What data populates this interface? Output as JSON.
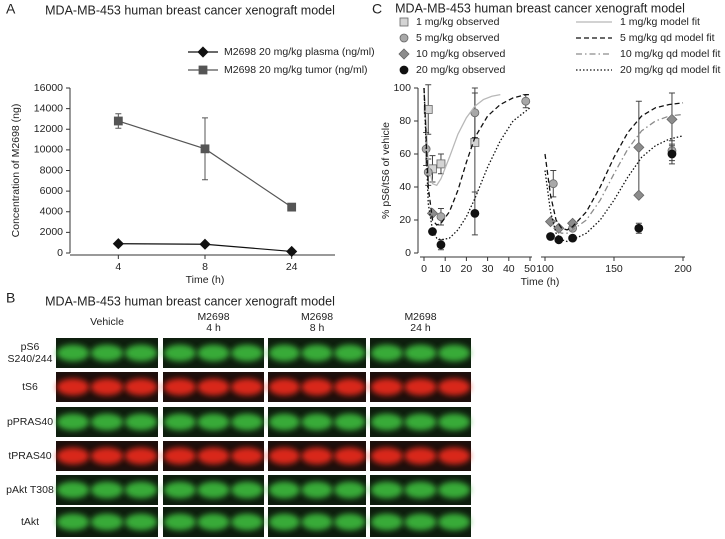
{
  "chart_data": [
    {
      "type": "line",
      "label": "A",
      "title": "MDA-MB-453 human breast cancer xenograft model",
      "xlabel": "Time (h)",
      "ylabel": "Concentration of M2698 (ng)",
      "categories": [
        "4",
        "8",
        "24"
      ],
      "ylim": [
        0,
        16000
      ],
      "yticks": [
        0,
        2000,
        4000,
        6000,
        8000,
        10000,
        12000,
        14000,
        16000
      ],
      "series": [
        {
          "name": "M2698 20 mg/kg plasma (ng/ml)",
          "color": "#111111",
          "marker": "diamond",
          "values": [
            900,
            850,
            150
          ],
          "errors": [
            60,
            60,
            40
          ]
        },
        {
          "name": "M2698 20 mg/kg tumor (ng/ml)",
          "color": "#555555",
          "marker": "square",
          "values": [
            12800,
            10100,
            4450
          ],
          "errors": [
            700,
            3000,
            120
          ]
        }
      ]
    },
    {
      "type": "scatter-line",
      "label": "C",
      "title": "MDA-MB-453 human breast cancer xenograft model",
      "xlabel": "Time (h)",
      "ylabel": "% pS6/tS6 of vehicle",
      "xlim": [
        [
          0,
          50
        ],
        [
          100,
          200
        ]
      ],
      "xticks": [
        0,
        10,
        20,
        30,
        40,
        50,
        100,
        150,
        200
      ],
      "ylim": [
        0,
        100
      ],
      "yticks": [
        0,
        20,
        40,
        60,
        80,
        100
      ],
      "series": [
        {
          "name": "1 mg/kg observed",
          "marker": "square",
          "color": "#d4d4d4",
          "x": [
            2,
            4,
            8,
            24
          ],
          "values": [
            87,
            51,
            54,
            67
          ],
          "errors": [
            15,
            8,
            6,
            30
          ]
        },
        {
          "name": "5 mg/kg observed",
          "marker": "circle",
          "color": "#a8a8a8",
          "x": [
            1,
            2,
            8,
            24,
            48,
            106,
            120,
            192
          ],
          "values": [
            63,
            49,
            22,
            85,
            92,
            42,
            15,
            62
          ],
          "errors": [
            10,
            8,
            5,
            15,
            4,
            8,
            null,
            6
          ]
        },
        {
          "name": "10 mg/kg observed",
          "marker": "diamond",
          "color": "#8c8c8c",
          "x": [
            4,
            104,
            110,
            120,
            168,
            168,
            192
          ],
          "values": [
            24,
            19,
            15,
            18,
            64,
            35,
            81
          ],
          "errors": [
            null,
            null,
            null,
            null,
            28,
            null,
            16
          ]
        },
        {
          "name": "20 mg/kg observed",
          "marker": "circle",
          "color": "#111111",
          "x": [
            4,
            8,
            24,
            104,
            110,
            120,
            168,
            192
          ],
          "values": [
            13,
            5,
            24,
            10,
            8,
            9,
            15,
            60
          ],
          "errors": [
            null,
            3,
            13,
            null,
            null,
            null,
            3,
            6
          ]
        },
        {
          "name": "1 mg/kg model fit",
          "line": "solid",
          "color": "#b8b8b8",
          "x": [
            0,
            2,
            4,
            6,
            8,
            12,
            16,
            20,
            24,
            28,
            32,
            36
          ],
          "values": [
            100,
            55,
            42,
            41,
            45,
            58,
            72,
            82,
            89,
            93,
            95,
            96
          ]
        },
        {
          "name": "5 mg/kg qd model fit",
          "line": "dashed",
          "color": "#111111",
          "x": [
            0,
            2,
            4,
            6,
            8,
            12,
            16,
            20,
            24,
            30,
            36,
            42,
            48,
            50,
            null,
            100,
            104,
            108,
            112,
            116,
            120,
            130,
            140,
            150,
            160,
            170,
            180,
            190,
            200
          ],
          "values": [
            100,
            40,
            20,
            17,
            18,
            25,
            38,
            55,
            70,
            83,
            90,
            94,
            96,
            96,
            null,
            60,
            35,
            20,
            15,
            14,
            16,
            25,
            40,
            58,
            73,
            83,
            88,
            90,
            91
          ]
        },
        {
          "name": "10 mg/kg qd model fit",
          "line": "dashdot",
          "color": "#8c8c8c",
          "x": [
            104,
            108,
            112,
            116,
            120,
            130,
            140,
            150,
            160,
            170,
            180,
            190,
            200
          ],
          "values": [
            20,
            14,
            12,
            12,
            14,
            20,
            32,
            48,
            63,
            74,
            80,
            83,
            84
          ]
        },
        {
          "name": "20 mg/kg qd model fit",
          "line": "dotted",
          "color": "#111111",
          "x": [
            0,
            2,
            4,
            6,
            8,
            12,
            16,
            20,
            24,
            30,
            36,
            42,
            48,
            50,
            null,
            100,
            104,
            108,
            112,
            116,
            120,
            130,
            140,
            150,
            160,
            170,
            180,
            190,
            200
          ],
          "values": [
            100,
            30,
            14,
            9,
            8,
            9,
            14,
            22,
            33,
            52,
            68,
            80,
            86,
            88,
            null,
            50,
            25,
            12,
            8,
            7,
            8,
            12,
            20,
            32,
            46,
            58,
            65,
            69,
            71
          ]
        }
      ]
    }
  ],
  "blot": {
    "label": "B",
    "title": "MDA-MB-453 human breast cancer xenograft model",
    "groups": [
      [
        "Vehicle"
      ],
      [
        "M2698",
        "4 h"
      ],
      [
        "M2698",
        "8 h"
      ],
      [
        "M2698",
        "24 h"
      ]
    ],
    "rows": [
      {
        "label": [
          "pS6",
          "S240/244"
        ],
        "color": "#3dbb3d"
      },
      {
        "label": [
          "tS6"
        ],
        "color": "#ee2a1e"
      },
      {
        "label": [
          "pPRAS40"
        ],
        "color": "#3dbb3d"
      },
      {
        "label": [
          "tPRAS40"
        ],
        "color": "#ee2a1e"
      },
      {
        "label": [
          "pAkt T308"
        ],
        "color": "#3dbb3d"
      },
      {
        "label": [
          "tAkt"
        ],
        "color": "#3dbb3d"
      }
    ]
  }
}
